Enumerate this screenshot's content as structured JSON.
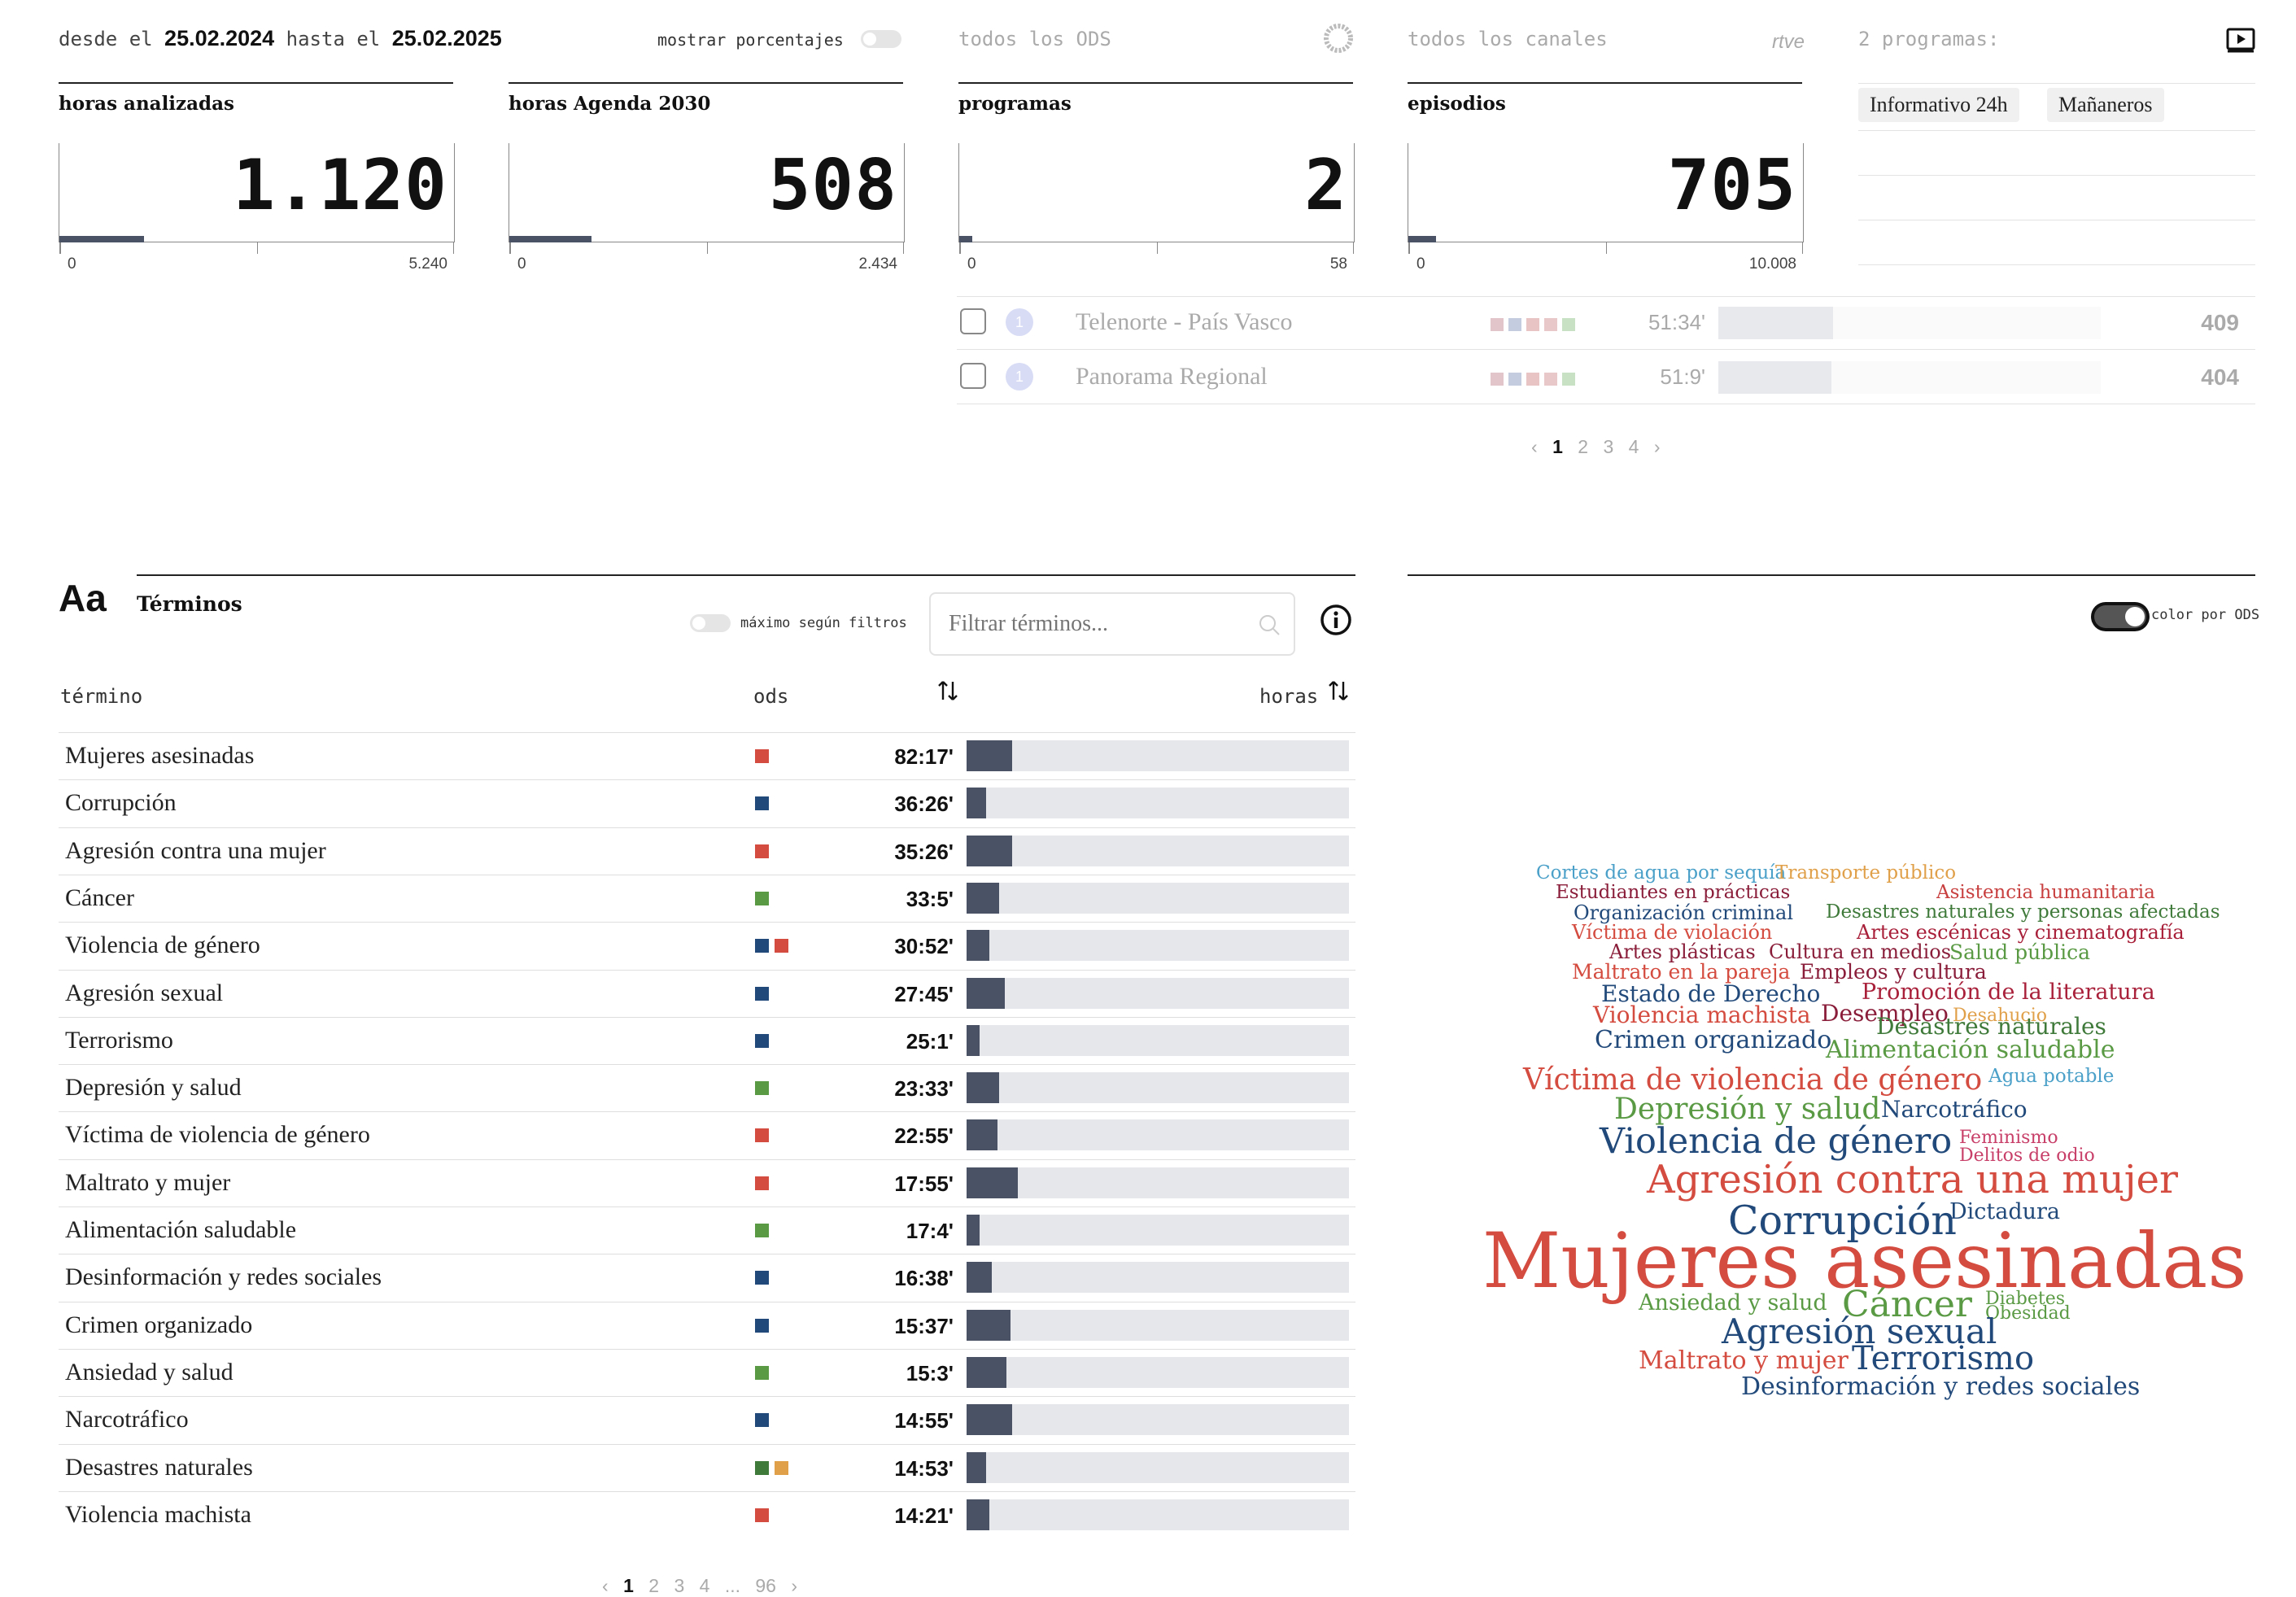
{
  "header": {
    "from_label": "desde el",
    "from_date": "25.02.2024",
    "to_label": "hasta el",
    "to_date": "25.02.2025",
    "show_percent_label": "mostrar porcentajes",
    "ods_filter_label": "todos los ODS",
    "channels_filter_label": "todos los canales",
    "channel_logo_text": "rtve",
    "programs_count_label": "2 programas:"
  },
  "stats": [
    {
      "label": "horas analizadas",
      "value": "1.120",
      "min": "0",
      "max": "5.240",
      "fraction": 0.214
    },
    {
      "label": "horas Agenda 2030",
      "value": "508",
      "min": "0",
      "max": "2.434",
      "fraction": 0.209
    },
    {
      "label": "programas",
      "value": "2",
      "min": "0",
      "max": "58",
      "fraction": 0.034
    },
    {
      "label": "episodios",
      "value": "705",
      "min": "0",
      "max": "10.008",
      "fraction": 0.07
    }
  ],
  "selected_programs": [
    "Informativo 24h",
    "Mañaneros"
  ],
  "programs": [
    {
      "badge": "1",
      "name": "Telenorte - País Vasco",
      "time": "51:34'",
      "count": "409",
      "fraction": 0.075
    },
    {
      "badge": "1",
      "name": "Panorama Regional",
      "time": "51:9'",
      "count": "404",
      "fraction": 0.074
    }
  ],
  "program_square_colors": [
    "#e2c4cb",
    "#c4cde0",
    "#e8c4c4",
    "#e8c8c8",
    "#c8e0c4"
  ],
  "programs_pager": {
    "prev": "‹",
    "pages": [
      "1",
      "2",
      "3",
      "4"
    ],
    "current": "1",
    "next": "›"
  },
  "terms": {
    "icon": "Aa",
    "title": "Términos",
    "max_toggle_label": "máximo según filtros",
    "filter_placeholder": "Filtrar términos...",
    "col_term": "término",
    "col_ods": "ods",
    "col_hours": "horas",
    "rows": [
      {
        "name": "Mujeres asesinadas",
        "ods": [
          "#d44b3f"
        ],
        "time": "82:17'",
        "fraction": 0.12
      },
      {
        "name": "Corrupción",
        "ods": [
          "#21497a"
        ],
        "time": "36:26'",
        "fraction": 0.05
      },
      {
        "name": "Agresión contra una mujer",
        "ods": [
          "#d44b3f"
        ],
        "time": "35:26'",
        "fraction": 0.12
      },
      {
        "name": "Cáncer",
        "ods": [
          "#5a9a44"
        ],
        "time": "33:5'",
        "fraction": 0.085
      },
      {
        "name": "Violencia de género",
        "ods": [
          "#21497a",
          "#d44b3f"
        ],
        "time": "30:52'",
        "fraction": 0.06
      },
      {
        "name": "Agresión sexual",
        "ods": [
          "#21497a"
        ],
        "time": "27:45'",
        "fraction": 0.1
      },
      {
        "name": "Terrorismo",
        "ods": [
          "#21497a"
        ],
        "time": "25:1'",
        "fraction": 0.035
      },
      {
        "name": "Depresión y salud",
        "ods": [
          "#5a9a44"
        ],
        "time": "23:33'",
        "fraction": 0.085
      },
      {
        "name": "Víctima de violencia de género",
        "ods": [
          "#d44b3f"
        ],
        "time": "22:55'",
        "fraction": 0.08
      },
      {
        "name": "Maltrato y mujer",
        "ods": [
          "#d44b3f"
        ],
        "time": "17:55'",
        "fraction": 0.135
      },
      {
        "name": "Alimentación saludable",
        "ods": [
          "#5a9a44"
        ],
        "time": "17:4'",
        "fraction": 0.035
      },
      {
        "name": "Desinformación y redes sociales",
        "ods": [
          "#21497a"
        ],
        "time": "16:38'",
        "fraction": 0.065
      },
      {
        "name": "Crimen organizado",
        "ods": [
          "#21497a"
        ],
        "time": "15:37'",
        "fraction": 0.115
      },
      {
        "name": "Ansiedad y salud",
        "ods": [
          "#5a9a44"
        ],
        "time": "15:3'",
        "fraction": 0.105
      },
      {
        "name": "Narcotráfico",
        "ods": [
          "#21497a"
        ],
        "time": "14:55'",
        "fraction": 0.12
      },
      {
        "name": "Desastres naturales",
        "ods": [
          "#3f7a3a",
          "#e0a04a"
        ],
        "time": "14:53'",
        "fraction": 0.05
      },
      {
        "name": "Violencia machista",
        "ods": [
          "#d44b3f"
        ],
        "time": "14:21'",
        "fraction": 0.06
      }
    ],
    "pager": {
      "prev": "‹",
      "pages": [
        "1",
        "2",
        "3",
        "4"
      ],
      "ellipsis": "...",
      "last": "96",
      "current": "1",
      "next": "›"
    }
  },
  "cloud": {
    "toggle_label": "color por ODS",
    "words": [
      {
        "text": "Cortes de agua por sequía",
        "color": "#4aa0c8"
      },
      {
        "text": "Transporte público",
        "color": "#e0a04a"
      },
      {
        "text": "Estudiantes en prácticas",
        "color": "#8a1e3a"
      },
      {
        "text": "Asistencia humanitaria",
        "color": "#c84040"
      },
      {
        "text": "Organización criminal",
        "color": "#21497a"
      },
      {
        "text": "Desastres naturales y personas afectadas",
        "color": "#3f7a3a"
      },
      {
        "text": "Víctima de violación",
        "color": "#d44b3f"
      },
      {
        "text": "Artes escénicas y cinematografía",
        "color": "#a8203a"
      },
      {
        "text": "Artes plásticas",
        "color": "#8a1e3a"
      },
      {
        "text": "Cultura en medios",
        "color": "#8a1e3a"
      },
      {
        "text": "Salud pública",
        "color": "#5a9a44"
      },
      {
        "text": "Maltrato en la pareja",
        "color": "#d44b3f"
      },
      {
        "text": "Empleos y cultura",
        "color": "#8a1e3a"
      },
      {
        "text": "Estado de Derecho",
        "color": "#21497a"
      },
      {
        "text": "Promoción de la literatura",
        "color": "#a8203a"
      },
      {
        "text": "Violencia machista",
        "color": "#d44b3f"
      },
      {
        "text": "Desempleo",
        "color": "#8a1e3a"
      },
      {
        "text": "Desahucio",
        "color": "#e0a04a"
      },
      {
        "text": "Desastres naturales",
        "color": "#3f7a3a"
      },
      {
        "text": "Crimen organizado",
        "color": "#21497a"
      },
      {
        "text": "Alimentación saludable",
        "color": "#5a9a44"
      },
      {
        "text": "Víctima de violencia de género",
        "color": "#d44b3f"
      },
      {
        "text": "Agua potable",
        "color": "#4aa0c8"
      },
      {
        "text": "Depresión y salud",
        "color": "#5a9a44"
      },
      {
        "text": "Narcotráfico",
        "color": "#21497a"
      },
      {
        "text": "Violencia de género",
        "color": "#21497a"
      },
      {
        "text": "Feminismo",
        "color": "#c8406a"
      },
      {
        "text": "Delitos de odio",
        "color": "#c8406a"
      },
      {
        "text": "Agresión contra una mujer",
        "color": "#d44b3f"
      },
      {
        "text": "Corrupción",
        "color": "#21497a"
      },
      {
        "text": "Dictadura",
        "color": "#21497a"
      },
      {
        "text": "Mujeres asesinadas",
        "color": "#d44b3f"
      },
      {
        "text": "Ansiedad y salud",
        "color": "#5a9a44"
      },
      {
        "text": "Cáncer",
        "color": "#5a9a44"
      },
      {
        "text": "Diabetes",
        "color": "#5a9a44"
      },
      {
        "text": "Obesidad",
        "color": "#5a9a44"
      },
      {
        "text": "Agresión sexual",
        "color": "#21497a"
      },
      {
        "text": "Maltrato y mujer",
        "color": "#d44b3f"
      },
      {
        "text": "Terrorismo",
        "color": "#21497a"
      },
      {
        "text": "Desinformación y redes sociales",
        "color": "#21497a"
      }
    ]
  }
}
